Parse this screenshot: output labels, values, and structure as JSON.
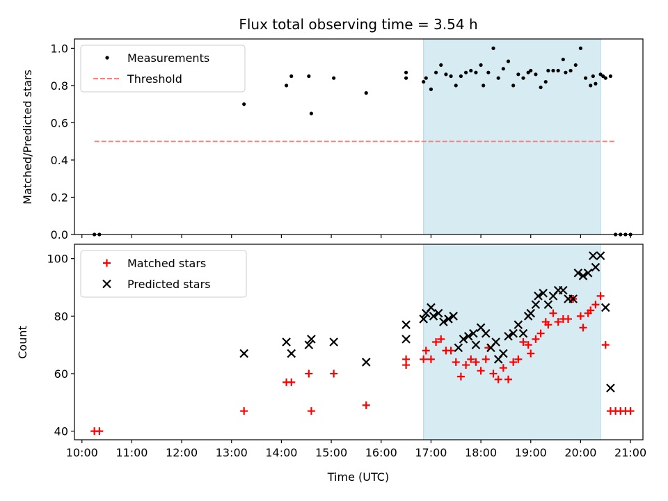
{
  "figure": {
    "title": "Flux total observing time = 3.54 h",
    "xlabel": "Time (UTC)"
  },
  "chart_data": [
    {
      "type": "scatter",
      "panel": "top",
      "ylabel": "Matched/Predicted stars",
      "xlim": [
        "09:51",
        "21:15"
      ],
      "ylim": [
        0,
        1.05
      ],
      "yticks": [
        "0.0",
        "0.2",
        "0.4",
        "0.6",
        "0.8",
        "1.0"
      ],
      "highlight_span": [
        "16:51",
        "20:24"
      ],
      "highlight_color": "#add8e6",
      "legend_position": "upper-left",
      "legend": [
        {
          "label": "Measurements",
          "marker": "dot",
          "color": "#000000"
        },
        {
          "label": "Threshold",
          "marker": "dashed-line",
          "color": "#ff7f7f"
        }
      ],
      "threshold": {
        "name": "Threshold",
        "y": 0.5,
        "x_from": "10:15",
        "x_to": "20:42",
        "color": "#ff7f7f"
      },
      "series": [
        {
          "name": "Measurements",
          "color": "#000000",
          "points": [
            [
              "10:15",
              0.0
            ],
            [
              "10:21",
              0.0
            ],
            [
              "13:15",
              0.7
            ],
            [
              "14:06",
              0.8
            ],
            [
              "14:12",
              0.85
            ],
            [
              "14:33",
              0.85
            ],
            [
              "14:36",
              0.65
            ],
            [
              "15:03",
              0.84
            ],
            [
              "15:42",
              0.76
            ],
            [
              "16:30",
              0.87
            ],
            [
              "16:30",
              0.84
            ],
            [
              "16:51",
              0.82
            ],
            [
              "16:54",
              0.84
            ],
            [
              "17:00",
              0.78
            ],
            [
              "17:06",
              0.87
            ],
            [
              "17:12",
              0.91
            ],
            [
              "17:18",
              0.86
            ],
            [
              "17:24",
              0.85
            ],
            [
              "17:30",
              0.8
            ],
            [
              "17:36",
              0.85
            ],
            [
              "17:42",
              0.87
            ],
            [
              "17:48",
              0.88
            ],
            [
              "17:54",
              0.87
            ],
            [
              "18:00",
              0.91
            ],
            [
              "18:03",
              0.8
            ],
            [
              "18:09",
              0.87
            ],
            [
              "18:15",
              1.0
            ],
            [
              "18:21",
              0.84
            ],
            [
              "18:27",
              0.89
            ],
            [
              "18:33",
              0.93
            ],
            [
              "18:39",
              0.8
            ],
            [
              "18:45",
              0.86
            ],
            [
              "18:51",
              0.84
            ],
            [
              "18:57",
              0.87
            ],
            [
              "19:00",
              0.88
            ],
            [
              "19:06",
              0.86
            ],
            [
              "19:12",
              0.79
            ],
            [
              "19:18",
              0.82
            ],
            [
              "19:21",
              0.88
            ],
            [
              "19:27",
              0.88
            ],
            [
              "19:33",
              0.88
            ],
            [
              "19:39",
              0.94
            ],
            [
              "19:42",
              0.87
            ],
            [
              "19:48",
              0.88
            ],
            [
              "19:54",
              0.91
            ],
            [
              "20:00",
              1.0
            ],
            [
              "20:06",
              0.84
            ],
            [
              "20:12",
              0.8
            ],
            [
              "20:15",
              0.85
            ],
            [
              "20:18",
              0.81
            ],
            [
              "20:24",
              0.86
            ],
            [
              "20:27",
              0.85
            ],
            [
              "20:30",
              0.84
            ],
            [
              "20:36",
              0.85
            ],
            [
              "20:42",
              0.0
            ],
            [
              "20:48",
              0.0
            ],
            [
              "20:54",
              0.0
            ],
            [
              "21:00",
              0.0
            ]
          ]
        }
      ]
    },
    {
      "type": "scatter",
      "panel": "bottom",
      "ylabel": "Count",
      "xlim": [
        "09:51",
        "21:15"
      ],
      "ylim": [
        37,
        105
      ],
      "yticks": [
        "40",
        "60",
        "80",
        "100"
      ],
      "xticks": [
        "10:00",
        "11:00",
        "12:00",
        "13:00",
        "14:00",
        "15:00",
        "16:00",
        "17:00",
        "18:00",
        "19:00",
        "20:00",
        "21:00"
      ],
      "highlight_span": [
        "16:51",
        "20:24"
      ],
      "highlight_color": "#add8e6",
      "legend_position": "upper-left",
      "legend": [
        {
          "label": "Matched stars",
          "marker": "plus",
          "color": "#ff0000"
        },
        {
          "label": "Predicted stars",
          "marker": "cross",
          "color": "#000000"
        }
      ],
      "series": [
        {
          "name": "Matched stars",
          "marker": "plus",
          "color": "#ff0000",
          "points": [
            [
              "10:15",
              40
            ],
            [
              "10:21",
              40
            ],
            [
              "13:15",
              47
            ],
            [
              "14:06",
              57
            ],
            [
              "14:12",
              57
            ],
            [
              "14:33",
              60
            ],
            [
              "14:36",
              47
            ],
            [
              "15:03",
              60
            ],
            [
              "15:42",
              49
            ],
            [
              "16:30",
              65
            ],
            [
              "16:30",
              63
            ],
            [
              "16:51",
              65
            ],
            [
              "16:54",
              68
            ],
            [
              "17:00",
              65
            ],
            [
              "17:06",
              71
            ],
            [
              "17:12",
              72
            ],
            [
              "17:18",
              68
            ],
            [
              "17:24",
              68
            ],
            [
              "17:30",
              64
            ],
            [
              "17:36",
              59
            ],
            [
              "17:42",
              63
            ],
            [
              "17:48",
              65
            ],
            [
              "17:54",
              64
            ],
            [
              "18:00",
              61
            ],
            [
              "18:06",
              65
            ],
            [
              "18:09",
              69
            ],
            [
              "18:15",
              60
            ],
            [
              "18:21",
              58
            ],
            [
              "18:27",
              62
            ],
            [
              "18:33",
              58
            ],
            [
              "18:39",
              64
            ],
            [
              "18:45",
              65
            ],
            [
              "18:51",
              71
            ],
            [
              "18:57",
              70
            ],
            [
              "19:00",
              67
            ],
            [
              "19:06",
              72
            ],
            [
              "19:12",
              74
            ],
            [
              "19:18",
              78
            ],
            [
              "19:21",
              77
            ],
            [
              "19:27",
              81
            ],
            [
              "19:33",
              78
            ],
            [
              "19:39",
              79
            ],
            [
              "19:45",
              79
            ],
            [
              "19:51",
              86
            ],
            [
              "20:00",
              80
            ],
            [
              "20:03",
              76
            ],
            [
              "20:09",
              81
            ],
            [
              "20:12",
              82
            ],
            [
              "20:18",
              84
            ],
            [
              "20:24",
              87
            ],
            [
              "20:30",
              70
            ],
            [
              "20:36",
              47
            ],
            [
              "20:42",
              47
            ],
            [
              "20:48",
              47
            ],
            [
              "20:54",
              47
            ],
            [
              "21:00",
              47
            ]
          ]
        },
        {
          "name": "Predicted stars",
          "marker": "cross",
          "color": "#000000",
          "points": [
            [
              "13:15",
              67
            ],
            [
              "14:06",
              71
            ],
            [
              "14:12",
              67
            ],
            [
              "14:33",
              70
            ],
            [
              "14:36",
              72
            ],
            [
              "15:03",
              71
            ],
            [
              "15:42",
              64
            ],
            [
              "16:30",
              77
            ],
            [
              "16:30",
              72
            ],
            [
              "16:51",
              79
            ],
            [
              "16:54",
              81
            ],
            [
              "17:00",
              83
            ],
            [
              "17:03",
              80
            ],
            [
              "17:09",
              81
            ],
            [
              "17:15",
              78
            ],
            [
              "17:21",
              79
            ],
            [
              "17:27",
              80
            ],
            [
              "17:33",
              69
            ],
            [
              "17:39",
              72
            ],
            [
              "17:45",
              73
            ],
            [
              "17:51",
              74
            ],
            [
              "17:54",
              70
            ],
            [
              "18:00",
              76
            ],
            [
              "18:06",
              74
            ],
            [
              "18:12",
              69
            ],
            [
              "18:18",
              71
            ],
            [
              "18:21",
              65
            ],
            [
              "18:27",
              67
            ],
            [
              "18:33",
              73
            ],
            [
              "18:39",
              74
            ],
            [
              "18:45",
              77
            ],
            [
              "18:51",
              74
            ],
            [
              "18:57",
              80
            ],
            [
              "19:00",
              81
            ],
            [
              "19:06",
              84
            ],
            [
              "19:09",
              87
            ],
            [
              "19:15",
              88
            ],
            [
              "19:21",
              84
            ],
            [
              "19:27",
              87
            ],
            [
              "19:33",
              89
            ],
            [
              "19:39",
              89
            ],
            [
              "19:45",
              86
            ],
            [
              "19:51",
              86
            ],
            [
              "19:57",
              95
            ],
            [
              "20:03",
              94
            ],
            [
              "20:09",
              95
            ],
            [
              "20:15",
              101
            ],
            [
              "20:18",
              97
            ],
            [
              "20:24",
              101
            ],
            [
              "20:30",
              83
            ],
            [
              "20:36",
              55
            ]
          ]
        }
      ]
    }
  ]
}
